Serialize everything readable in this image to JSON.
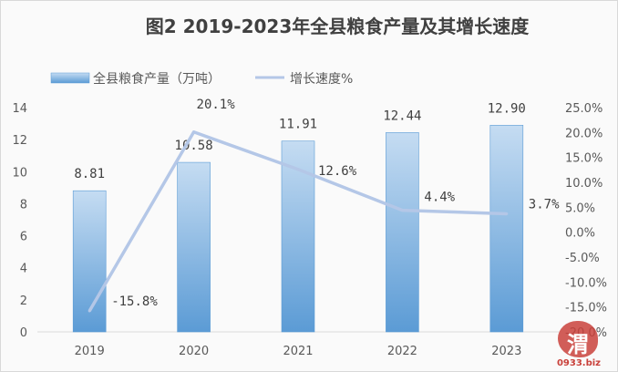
{
  "chart_data": {
    "type": "bar",
    "title": "图2  2019-2023年全县粮食产量及其增长速度",
    "categories": [
      "2019",
      "2020",
      "2021",
      "2022",
      "2023"
    ],
    "series": [
      {
        "name": "全县粮食产量（万吨）",
        "type": "bar",
        "axis": "left",
        "values": [
          8.81,
          10.58,
          11.91,
          12.44,
          12.9
        ],
        "labels": [
          "8.81",
          "10.58",
          "11.91",
          "12.44",
          "12.90"
        ]
      },
      {
        "name": "增长速度%",
        "type": "line",
        "axis": "right",
        "values": [
          -15.8,
          20.1,
          12.6,
          4.4,
          3.7
        ],
        "labels": [
          "-15.8%",
          "20.1%",
          "12.6%",
          "4.4%",
          "3.7%"
        ]
      }
    ],
    "y_left": {
      "ylim": [
        0,
        14
      ],
      "ticks": [
        "0",
        "2",
        "4",
        "6",
        "8",
        "10",
        "12",
        "14"
      ]
    },
    "y_right": {
      "ylim": [
        -20,
        25
      ],
      "ticks": [
        "-20.0%",
        "-15.0%",
        "-10.0%",
        "-5.0%",
        "0.0%",
        "5.0%",
        "10.0%",
        "15.0%",
        "20.0%",
        "25.0%"
      ]
    },
    "grid": false,
    "legend": "top-left",
    "colors": {
      "bar_top": "#c5dcf2",
      "bar_bottom": "#5b9bd5",
      "line": "#b4c7e7",
      "axis": "#d9d9d9"
    }
  },
  "watermark": {
    "glyph": "渭",
    "text": "0933.biz"
  }
}
